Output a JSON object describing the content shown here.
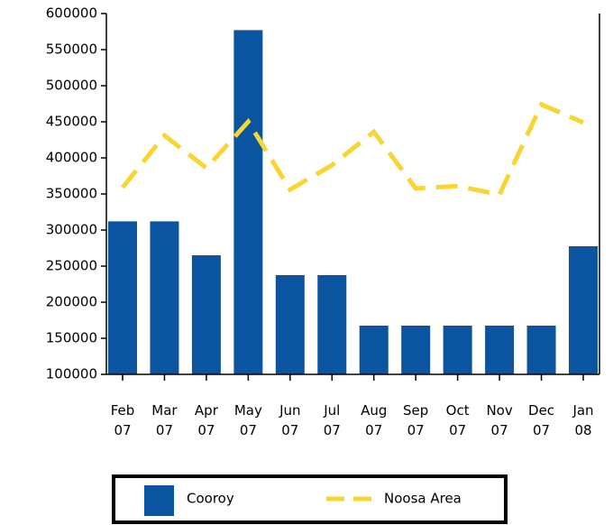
{
  "chart_data": {
    "type": "bar",
    "categories": [
      "Feb 07",
      "Mar 07",
      "Apr 07",
      "May 07",
      "Jun 07",
      "Jul 07",
      "Aug 07",
      "Sep 07",
      "Oct 07",
      "Nov 07",
      "Dec 07",
      "Jan 08"
    ],
    "series": [
      {
        "name": "Cooroy",
        "type": "bar",
        "color": "#0b55a0",
        "values": [
          312000,
          312000,
          265000,
          577000,
          237500,
          237500,
          167500,
          167500,
          167500,
          167500,
          167500,
          277500
        ]
      },
      {
        "name": "Noosa Area",
        "type": "line",
        "color": "#f8d532",
        "values": [
          359000,
          431000,
          386000,
          450000,
          356000,
          390000,
          436000,
          357500,
          361000,
          349000,
          474000,
          449000
        ]
      }
    ],
    "ylim": [
      100000,
      600000
    ],
    "yticks": [
      100000,
      150000,
      200000,
      250000,
      300000,
      350000,
      400000,
      450000,
      500000,
      550000,
      600000
    ],
    "legend": "bottom"
  }
}
